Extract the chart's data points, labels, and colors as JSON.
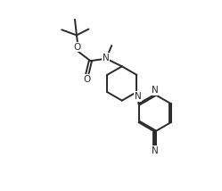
{
  "bg_color": "#ffffff",
  "line_color": "#2a2a2a",
  "line_width": 1.4,
  "font_size": 7.5,
  "figsize": [
    2.49,
    2.14
  ],
  "dpi": 100,
  "xlim": [
    0,
    10
  ],
  "ylim": [
    0,
    8.6
  ]
}
